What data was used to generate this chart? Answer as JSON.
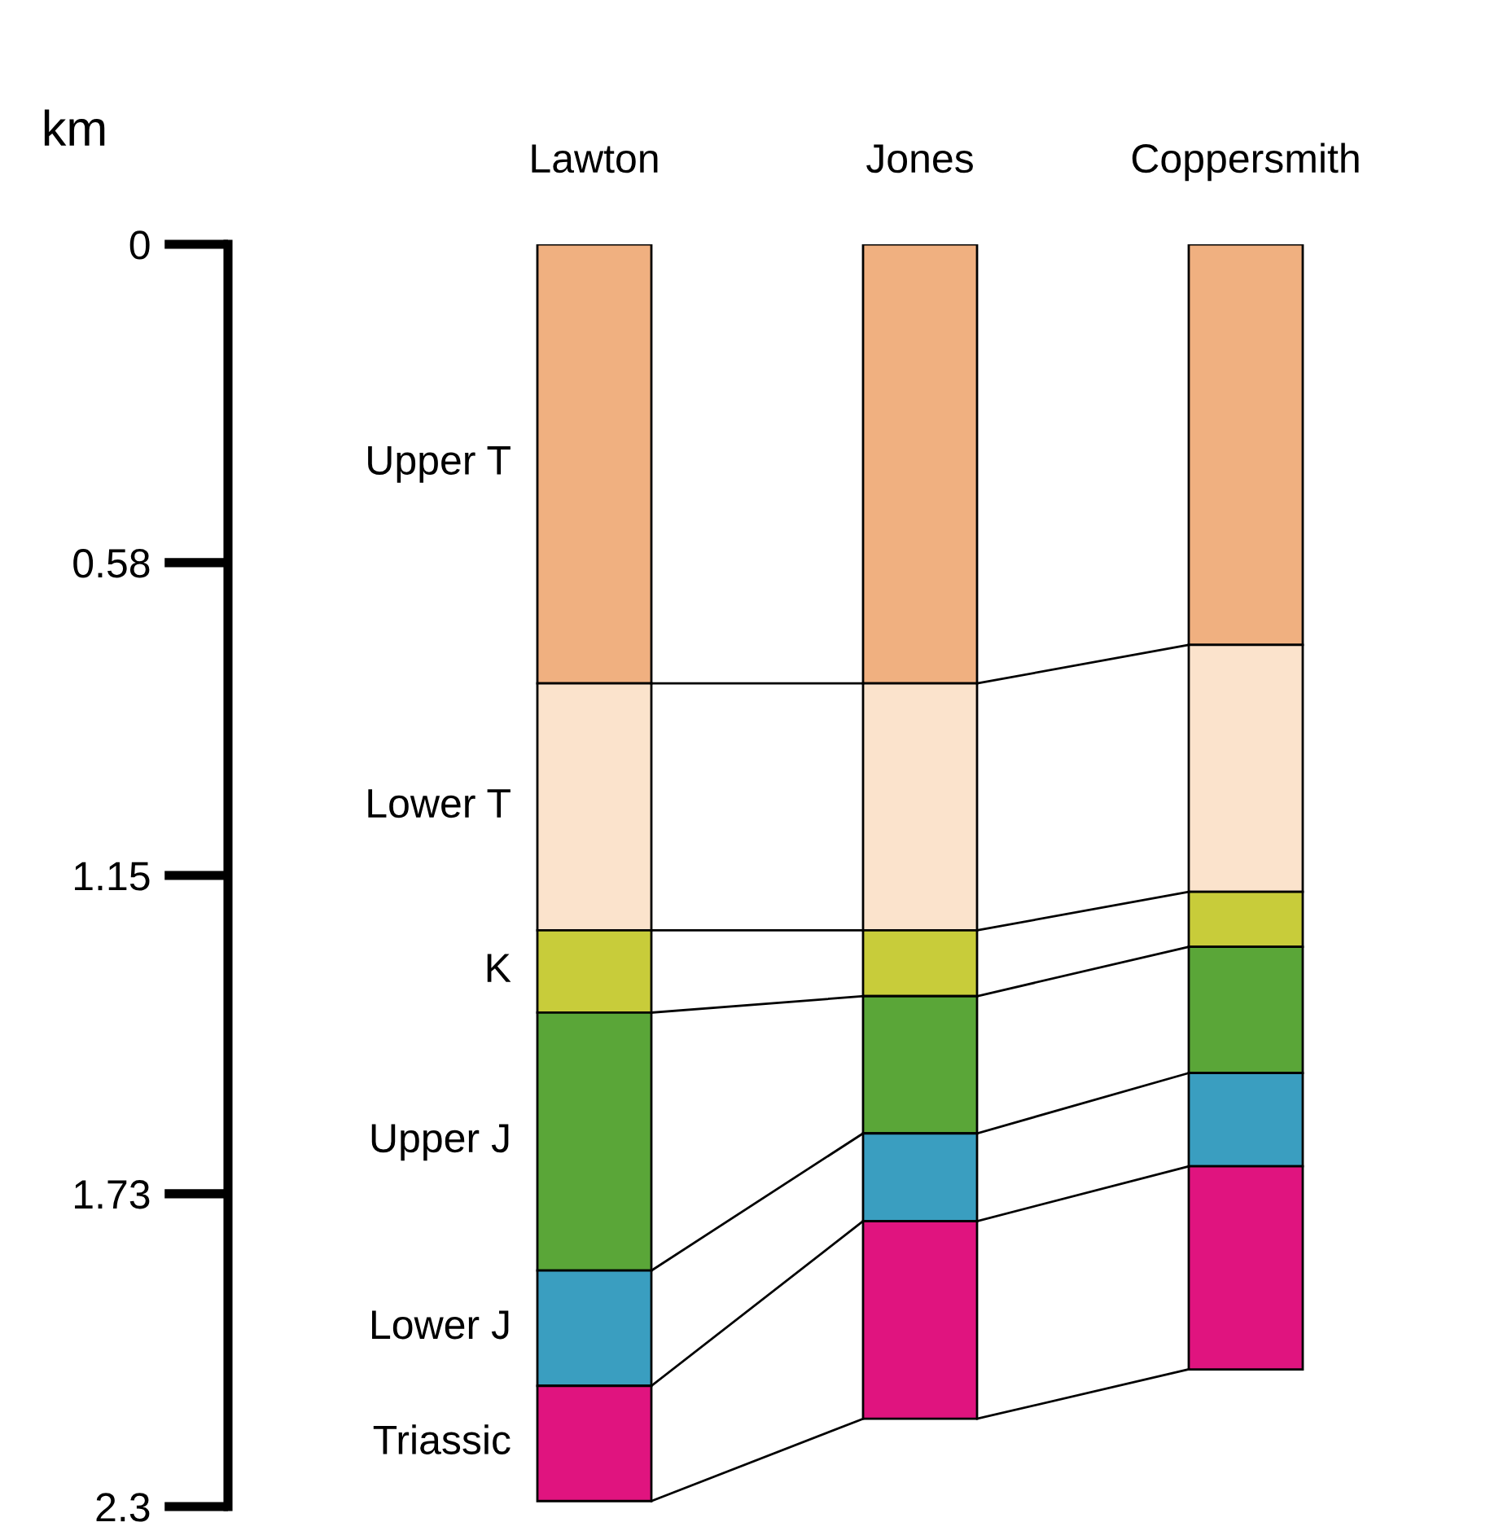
{
  "chart_data": {
    "type": "bar",
    "stacked": true,
    "ylabel": "km",
    "categories": [
      "Lawton",
      "Jones",
      "Coppersmith"
    ],
    "series": [
      {
        "name": "Upper T",
        "color": "#f0b080",
        "values": [
          0.8,
          0.8,
          0.73
        ]
      },
      {
        "name": "Lower T",
        "color": "#fbe3cc",
        "values": [
          0.45,
          0.45,
          0.45
        ]
      },
      {
        "name": "K",
        "color": "#c8cc3a",
        "values": [
          0.15,
          0.12,
          0.1
        ]
      },
      {
        "name": "Upper J",
        "color": "#5aa638",
        "values": [
          0.47,
          0.25,
          0.23
        ]
      },
      {
        "name": "Lower J",
        "color": "#3a9ec0",
        "values": [
          0.21,
          0.16,
          0.17
        ]
      },
      {
        "name": "Triassic",
        "color": "#e0147f",
        "values": [
          0.21,
          0.36,
          0.37
        ]
      }
    ],
    "ylim": [
      2.3,
      0
    ],
    "yticks": [
      0,
      0.58,
      1.15,
      1.73,
      2.3
    ]
  }
}
